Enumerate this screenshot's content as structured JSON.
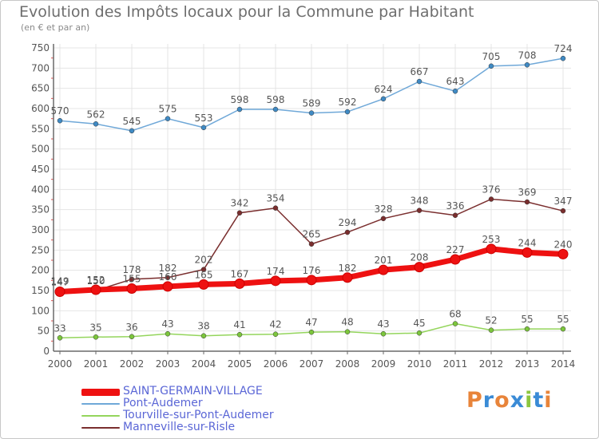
{
  "title": "Evolution des Impôts locaux pour la Commune par Habitant",
  "subtitle": "(en € et par an)",
  "logo": {
    "text": "Proxiti",
    "letters": [
      "P",
      "r",
      "o",
      "x",
      "i",
      "t",
      "i"
    ],
    "colors": [
      "#e8843a",
      "#3a8bd6",
      "#e8843a",
      "#3a8bd6",
      "#8cc63f",
      "#3a8bd6",
      "#e8843a"
    ]
  },
  "colors": {
    "grid": "#e4e4e4",
    "axis": "#6a6a6a",
    "label": "#555555",
    "legend_text": "#5a66d6"
  },
  "chart_data": {
    "type": "line",
    "x": [
      "2000",
      "2001",
      "2002",
      "2003",
      "2004",
      "2005",
      "2006",
      "2007",
      "2008",
      "2009",
      "2010",
      "2011",
      "2012",
      "2013",
      "2014"
    ],
    "ylim": [
      0,
      750
    ],
    "yticks": [
      0,
      50,
      100,
      150,
      200,
      250,
      300,
      350,
      400,
      450,
      500,
      550,
      600,
      650,
      700,
      750
    ],
    "grid": true,
    "legend_position": "bottom-left",
    "series": [
      {
        "name": "SAINT-GERMAIN-VILLAGE",
        "color": "#ee1111",
        "thick": true,
        "values": [
          147,
          152,
          155,
          160,
          165,
          167,
          174,
          176,
          182,
          201,
          208,
          227,
          253,
          244,
          240
        ]
      },
      {
        "name": "Pont-Audemer",
        "color": "#6fa8d8",
        "marker": "#3f8ac4",
        "values": [
          570,
          562,
          545,
          575,
          553,
          598,
          598,
          589,
          592,
          624,
          667,
          643,
          705,
          708,
          724
        ]
      },
      {
        "name": "Tourville-sur-Pont-Audemer",
        "color": "#94d55c",
        "marker": "#7cc63c",
        "values": [
          33,
          35,
          36,
          43,
          38,
          41,
          42,
          47,
          48,
          43,
          45,
          68,
          52,
          55,
          55
        ]
      },
      {
        "name": "Manneville-sur-Risle",
        "color": "#7a2e2e",
        "marker": "#7a2e2e",
        "values": [
          149,
          150,
          178,
          182,
          202,
          342,
          354,
          265,
          294,
          328,
          348,
          336,
          376,
          369,
          347
        ]
      }
    ]
  }
}
